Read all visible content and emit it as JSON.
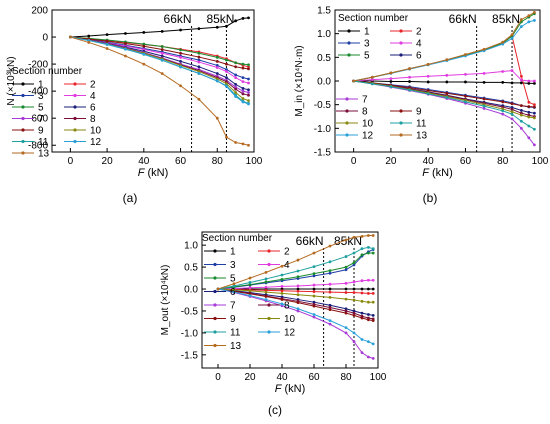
{
  "series_colors": {
    "1": "#000000",
    "2": "#e8242b",
    "3": "#1f3fa8",
    "4": "#e03ce0",
    "5": "#1a8a2e",
    "6": "#1a1f7a",
    "7": "#a83ad8",
    "8": "#7a0f3a",
    "9": "#8a1010",
    "10": "#8a8a10",
    "11": "#1fa0a0",
    "12": "#2aa0d8",
    "13": "#b56a20"
  },
  "chart_data": [
    {
      "id": "a",
      "type": "line",
      "caption": "(a)",
      "xlabel": "F (kN)",
      "ylabel": "N (×10³kN)",
      "xlim": [
        -10,
        100
      ],
      "ylim": [
        -850,
        200
      ],
      "xticks": [
        0,
        20,
        40,
        60,
        80,
        100
      ],
      "yticks": [
        -800,
        -600,
        -400,
        -200,
        0,
        200
      ],
      "legend_title": "Section number",
      "legend_placement": "bottom-left",
      "reference_lines": [
        {
          "x": 66,
          "label": "66kN"
        },
        {
          "x": 85,
          "label": "85kN"
        }
      ],
      "x": [
        0,
        10,
        20,
        30,
        40,
        50,
        60,
        70,
        80,
        85,
        90,
        94,
        97
      ],
      "series": [
        {
          "name": "1",
          "values": [
            0,
            8,
            18,
            26,
            34,
            42,
            52,
            62,
            72,
            80,
            120,
            138,
            142
          ]
        },
        {
          "name": "2",
          "values": [
            0,
            -12,
            -25,
            -40,
            -55,
            -70,
            -90,
            -110,
            -140,
            -160,
            -190,
            -210,
            -220
          ]
        },
        {
          "name": "3",
          "values": [
            0,
            -18,
            -38,
            -60,
            -85,
            -110,
            -140,
            -170,
            -210,
            -240,
            -280,
            -300,
            -310
          ]
        },
        {
          "name": "4",
          "values": [
            0,
            -20,
            -42,
            -66,
            -92,
            -120,
            -150,
            -185,
            -225,
            -255,
            -300,
            -330,
            -340
          ]
        },
        {
          "name": "5",
          "values": [
            0,
            -10,
            -22,
            -36,
            -52,
            -70,
            -95,
            -120,
            -150,
            -170,
            -190,
            -200,
            -205
          ]
        },
        {
          "name": "6",
          "values": [
            0,
            -20,
            -45,
            -75,
            -105,
            -140,
            -180,
            -220,
            -270,
            -300,
            -350,
            -380,
            -390
          ]
        },
        {
          "name": "7",
          "values": [
            0,
            -22,
            -48,
            -80,
            -115,
            -155,
            -200,
            -240,
            -290,
            -320,
            -370,
            -400,
            -410
          ]
        },
        {
          "name": "8",
          "values": [
            0,
            -23,
            -50,
            -82,
            -118,
            -158,
            -205,
            -248,
            -300,
            -330,
            -385,
            -420,
            -430
          ]
        },
        {
          "name": "9",
          "values": [
            0,
            -14,
            -30,
            -48,
            -68,
            -92,
            -120,
            -148,
            -180,
            -200,
            -220,
            -230,
            -235
          ]
        },
        {
          "name": "10",
          "values": [
            0,
            -24,
            -52,
            -85,
            -120,
            -162,
            -210,
            -255,
            -310,
            -345,
            -410,
            -455,
            -470
          ]
        },
        {
          "name": "11",
          "values": [
            0,
            -26,
            -55,
            -90,
            -128,
            -172,
            -222,
            -270,
            -325,
            -360,
            -430,
            -475,
            -490
          ]
        },
        {
          "name": "12",
          "values": [
            0,
            -25,
            -54,
            -88,
            -126,
            -170,
            -220,
            -268,
            -325,
            -365,
            -440,
            -480,
            -495
          ]
        },
        {
          "name": "13",
          "values": [
            0,
            -40,
            -85,
            -140,
            -200,
            -270,
            -360,
            -460,
            -600,
            -740,
            -780,
            -790,
            -800
          ]
        }
      ]
    },
    {
      "id": "b",
      "type": "line",
      "caption": "(b)",
      "xlabel": "F (kN)",
      "ylabel": "M_in (×10⁴N·m)",
      "xlim": [
        -10,
        100
      ],
      "ylim": [
        -1.5,
        1.5
      ],
      "xticks": [
        0,
        20,
        40,
        60,
        80,
        100
      ],
      "yticks": [
        -1.5,
        -1.0,
        -0.5,
        0.0,
        0.5,
        1.0,
        1.5
      ],
      "legend_title": "Section number",
      "legend_placement": "top-left and bottom-left",
      "reference_lines": [
        {
          "x": 66,
          "label": "66kN"
        },
        {
          "x": 85,
          "label": "85kN"
        }
      ],
      "x": [
        0,
        10,
        20,
        30,
        40,
        50,
        60,
        70,
        80,
        85,
        90,
        94,
        97
      ],
      "series": [
        {
          "name": "1",
          "values": [
            0,
            0,
            -0.01,
            -0.01,
            -0.02,
            -0.02,
            -0.02,
            -0.03,
            -0.03,
            -0.04,
            -0.04,
            -0.05,
            -0.05
          ]
        },
        {
          "name": "2",
          "values": [
            0,
            0.08,
            0.17,
            0.26,
            0.35,
            0.44,
            0.55,
            0.66,
            0.8,
            0.95,
            0.1,
            -0.45,
            -0.5
          ]
        },
        {
          "name": "3",
          "values": [
            0,
            -0.04,
            -0.08,
            -0.12,
            -0.18,
            -0.24,
            -0.3,
            -0.36,
            -0.42,
            -0.46,
            -0.52,
            -0.55,
            -0.56
          ]
        },
        {
          "name": "4",
          "values": [
            0,
            0.03,
            0.05,
            0.08,
            0.1,
            0.12,
            0.14,
            0.16,
            0.2,
            0.22,
            0.02,
            0.0,
            0.0
          ]
        },
        {
          "name": "5",
          "values": [
            0,
            0.08,
            0.17,
            0.26,
            0.35,
            0.44,
            0.55,
            0.66,
            0.8,
            0.95,
            1.25,
            1.35,
            1.42
          ]
        },
        {
          "name": "6",
          "values": [
            0,
            -0.05,
            -0.1,
            -0.16,
            -0.23,
            -0.3,
            -0.38,
            -0.45,
            -0.52,
            -0.56,
            -0.62,
            -0.66,
            -0.68
          ]
        },
        {
          "name": "7",
          "values": [
            0,
            -0.06,
            -0.13,
            -0.2,
            -0.28,
            -0.37,
            -0.47,
            -0.58,
            -0.7,
            -0.8,
            -1.0,
            -1.2,
            -1.35
          ]
        },
        {
          "name": "8",
          "values": [
            0,
            -0.05,
            -0.11,
            -0.17,
            -0.24,
            -0.31,
            -0.39,
            -0.47,
            -0.55,
            -0.6,
            -0.68,
            -0.72,
            -0.75
          ]
        },
        {
          "name": "9",
          "values": [
            0,
            -0.04,
            -0.09,
            -0.14,
            -0.2,
            -0.26,
            -0.32,
            -0.38,
            -0.44,
            -0.48,
            -0.52,
            -0.54,
            -0.55
          ]
        },
        {
          "name": "10",
          "values": [
            0,
            -0.05,
            -0.11,
            -0.18,
            -0.25,
            -0.33,
            -0.41,
            -0.5,
            -0.59,
            -0.65,
            -0.72,
            -0.76,
            -0.78
          ]
        },
        {
          "name": "11",
          "values": [
            0,
            -0.06,
            -0.12,
            -0.19,
            -0.27,
            -0.35,
            -0.44,
            -0.53,
            -0.63,
            -0.7,
            -0.85,
            -0.95,
            -1.02
          ]
        },
        {
          "name": "12",
          "values": [
            0,
            0.08,
            0.16,
            0.25,
            0.34,
            0.43,
            0.53,
            0.64,
            0.78,
            0.9,
            1.15,
            1.25,
            1.28
          ]
        },
        {
          "name": "13",
          "values": [
            0,
            0.08,
            0.17,
            0.26,
            0.35,
            0.45,
            0.56,
            0.67,
            0.82,
            0.98,
            1.3,
            1.38,
            1.45
          ]
        }
      ]
    },
    {
      "id": "c",
      "type": "line",
      "caption": "(c)",
      "xlabel": "F (kN)",
      "ylabel": "M_out (×10⁴kN)",
      "xlim": [
        -10,
        100
      ],
      "ylim": [
        -1.8,
        1.3
      ],
      "xticks": [
        0,
        20,
        40,
        60,
        80,
        100
      ],
      "yticks": [
        -1.5,
        -1.0,
        -0.5,
        0.0,
        0.5,
        1.0
      ],
      "legend_title": "Section number",
      "legend_placement": "left",
      "reference_lines": [
        {
          "x": 66,
          "label": "66kN"
        },
        {
          "x": 85,
          "label": "85kN"
        }
      ],
      "x": [
        0,
        10,
        20,
        30,
        40,
        50,
        60,
        70,
        80,
        85,
        90,
        94,
        97
      ],
      "series": [
        {
          "name": "1",
          "values": [
            0,
            0,
            0,
            0,
            0,
            0,
            0,
            0,
            0,
            0,
            0,
            0,
            0
          ]
        },
        {
          "name": "2",
          "values": [
            0,
            -0.01,
            -0.02,
            -0.03,
            -0.04,
            -0.05,
            -0.06,
            -0.07,
            -0.08,
            -0.08,
            -0.09,
            -0.1,
            -0.1
          ]
        },
        {
          "name": "3",
          "values": [
            0,
            0.04,
            0.09,
            0.14,
            0.19,
            0.24,
            0.3,
            0.36,
            0.44,
            0.55,
            0.75,
            0.85,
            0.9
          ]
        },
        {
          "name": "4",
          "values": [
            0,
            0.01,
            0.03,
            0.04,
            0.06,
            0.07,
            0.09,
            0.11,
            0.13,
            0.16,
            0.19,
            0.2,
            0.2
          ]
        },
        {
          "name": "5",
          "values": [
            0,
            0.05,
            0.1,
            0.16,
            0.22,
            0.28,
            0.35,
            0.42,
            0.5,
            0.6,
            0.78,
            0.82,
            0.82
          ]
        },
        {
          "name": "6",
          "values": [
            0,
            -0.04,
            -0.08,
            -0.13,
            -0.18,
            -0.24,
            -0.3,
            -0.37,
            -0.45,
            -0.5,
            -0.55,
            -0.58,
            -0.6
          ]
        },
        {
          "name": "7",
          "values": [
            0,
            -0.08,
            -0.17,
            -0.27,
            -0.38,
            -0.5,
            -0.64,
            -0.8,
            -1.0,
            -1.2,
            -1.45,
            -1.55,
            -1.58
          ]
        },
        {
          "name": "8",
          "values": [
            0,
            -0.05,
            -0.1,
            -0.16,
            -0.22,
            -0.28,
            -0.35,
            -0.42,
            -0.5,
            -0.55,
            -0.62,
            -0.66,
            -0.68
          ]
        },
        {
          "name": "9",
          "values": [
            0,
            -0.05,
            -0.11,
            -0.17,
            -0.24,
            -0.31,
            -0.39,
            -0.47,
            -0.55,
            -0.6,
            -0.66,
            -0.7,
            -0.72
          ]
        },
        {
          "name": "10",
          "values": [
            0,
            -0.02,
            -0.04,
            -0.07,
            -0.1,
            -0.13,
            -0.16,
            -0.19,
            -0.23,
            -0.25,
            -0.28,
            -0.3,
            -0.3
          ]
        },
        {
          "name": "11",
          "values": [
            0,
            0.07,
            0.15,
            0.23,
            0.32,
            0.41,
            0.51,
            0.62,
            0.74,
            0.82,
            0.92,
            0.95,
            0.92
          ]
        },
        {
          "name": "12",
          "values": [
            0,
            -0.07,
            -0.15,
            -0.24,
            -0.34,
            -0.45,
            -0.58,
            -0.72,
            -0.88,
            -1.0,
            -1.15,
            -1.2,
            -1.25
          ]
        },
        {
          "name": "13",
          "values": [
            0,
            0.12,
            0.25,
            0.38,
            0.52,
            0.66,
            0.82,
            0.98,
            1.12,
            1.18,
            1.2,
            1.22,
            1.22
          ]
        }
      ]
    }
  ]
}
